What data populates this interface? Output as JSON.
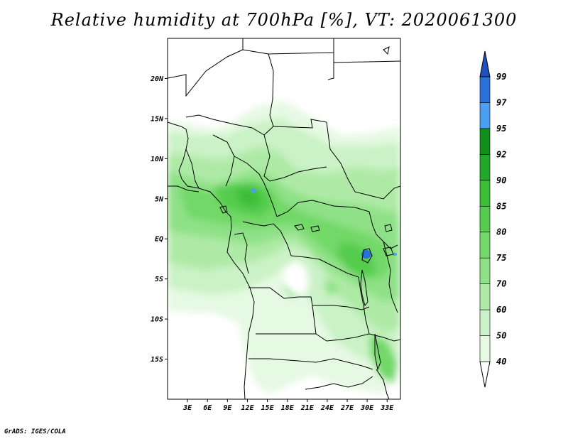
{
  "title": "Relative humidity at 700hPa [%], VT: 2020061300",
  "credit": "GrADS: IGES/COLA",
  "map": {
    "lon_range": [
      0,
      35
    ],
    "lat_range": [
      -20,
      25
    ],
    "lat_labels": [
      "20N",
      "15N",
      "10N",
      "5N",
      "EQ",
      "5S",
      "10S",
      "15S"
    ],
    "lon_labels": [
      "3E",
      "6E",
      "9E",
      "12E",
      "15E",
      "18E",
      "21E",
      "24E",
      "27E",
      "30E",
      "33E"
    ]
  },
  "colorbar": {
    "levels": [
      "40",
      "50",
      "60",
      "70",
      "75",
      "80",
      "85",
      "90",
      "92",
      "95",
      "97",
      "99"
    ],
    "colors": [
      "#ffffff",
      "#e6f9e3",
      "#cbf2c6",
      "#aeeaa6",
      "#8fe187",
      "#72d868",
      "#55cc4d",
      "#3dbe37",
      "#22a828",
      "#118f1a",
      "#4a9ff0",
      "#2a72d8",
      "#1e50c0"
    ]
  }
}
